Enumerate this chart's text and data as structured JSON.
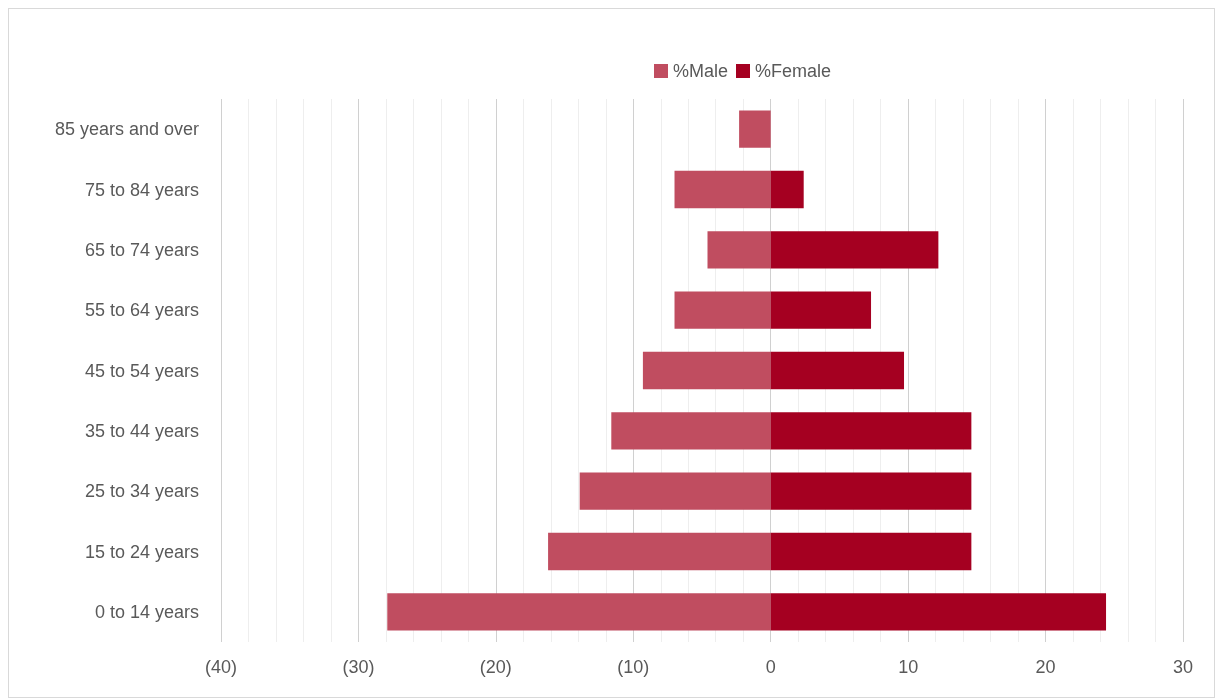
{
  "chart_data": {
    "type": "bar",
    "orientation": "horizontal",
    "categories": [
      "85 years and over",
      "75 to 84 years",
      "65 to 74 years",
      "55 to 64 years",
      "45 to 54 years",
      "35 to 44 years",
      "25 to 34 years",
      "15 to 24 years",
      "0 to 14 years"
    ],
    "series": [
      {
        "name": "%Male",
        "color": "#c04d60",
        "values": [
          -2.3,
          -7.0,
          -4.6,
          -7.0,
          -9.3,
          -11.6,
          -13.9,
          -16.2,
          -27.9
        ]
      },
      {
        "name": "%Female",
        "color": "#a50021",
        "values": [
          0,
          2.4,
          12.2,
          7.3,
          9.7,
          14.6,
          14.6,
          14.6,
          24.4
        ]
      }
    ],
    "xlim": [
      -40,
      30
    ],
    "xticks": [
      {
        "value": -40,
        "label": "(40)"
      },
      {
        "value": -30,
        "label": "(30)"
      },
      {
        "value": -20,
        "label": "(20)"
      },
      {
        "value": -10,
        "label": "(10)"
      },
      0,
      10,
      20,
      30
    ],
    "stacked": true,
    "grid": "x",
    "legend": "top"
  }
}
